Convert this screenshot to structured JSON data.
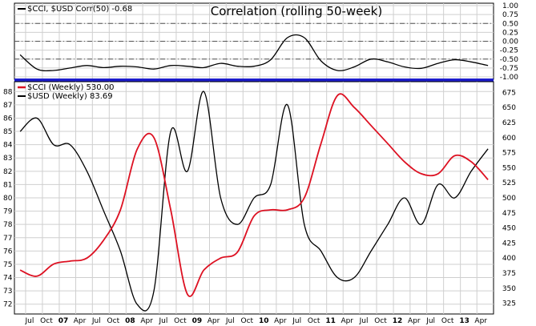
{
  "chart_data": [
    {
      "type": "line",
      "title": "Correlation (rolling 50-week)",
      "legend": [
        {
          "swatch": "#000000",
          "label": "$CCI, $USD Corr(50) -0.68"
        }
      ],
      "legend_position": "top-left",
      "grid": true,
      "y_ticks": [
        "1.00",
        "0.75",
        "0.50",
        "0.25",
        "0.00",
        "-0.25",
        "-0.50",
        "-0.75",
        "-1.00"
      ],
      "ylim": [
        -1.0,
        1.0
      ],
      "reference_lines": [
        0.5,
        0.0,
        -0.5
      ],
      "x": [
        "2006-06",
        "2006-09",
        "2006-12",
        "2007-03",
        "2007-06",
        "2007-09",
        "2007-12",
        "2008-03",
        "2008-06",
        "2008-09",
        "2008-12",
        "2009-03",
        "2009-06",
        "2009-09",
        "2009-12",
        "2010-03",
        "2010-06",
        "2010-09",
        "2010-12",
        "2011-03",
        "2011-06",
        "2011-09",
        "2011-12",
        "2012-03",
        "2012-06",
        "2012-09",
        "2012-12",
        "2013-03",
        "2013-06"
      ],
      "series": [
        {
          "name": "$CCI, $USD Corr(50)",
          "color": "#000000",
          "values": [
            -0.38,
            -0.78,
            -0.82,
            -0.75,
            -0.68,
            -0.74,
            -0.7,
            -0.72,
            -0.78,
            -0.68,
            -0.7,
            -0.74,
            -0.62,
            -0.7,
            -0.7,
            -0.52,
            0.1,
            0.1,
            -0.55,
            -0.82,
            -0.72,
            -0.5,
            -0.58,
            -0.72,
            -0.76,
            -0.62,
            -0.52,
            -0.58,
            -0.68
          ]
        }
      ]
    },
    {
      "type": "line",
      "legend": [
        {
          "swatch": "#dd1122",
          "label": "$CCI (Weekly) 530.00"
        },
        {
          "swatch": "#000000",
          "label": "$USD (Weekly) 83.69"
        }
      ],
      "legend_position": "top-left",
      "grid": true,
      "left_axis": {
        "ticks": [
          "88",
          "87",
          "86",
          "85",
          "84",
          "83",
          "82",
          "81",
          "80",
          "79",
          "78",
          "77",
          "76",
          "75",
          "74",
          "73",
          "72"
        ],
        "ylim": [
          71.5,
          88.5
        ]
      },
      "right_axis": {
        "ticks": [
          "675",
          "650",
          "625",
          "600",
          "575",
          "550",
          "525",
          "500",
          "475",
          "450",
          "425",
          "400",
          "375",
          "350",
          "325"
        ],
        "ylim": [
          312.5,
          687.5
        ]
      },
      "x_tick_labels": [
        "Jul",
        "Oct",
        "07",
        "Apr",
        "Jul",
        "Oct",
        "08",
        "Apr",
        "Jul",
        "Oct",
        "09",
        "Apr",
        "Jul",
        "Oct",
        "10",
        "Apr",
        "Jul",
        "Oct",
        "11",
        "Apr",
        "Jul",
        "Oct",
        "12",
        "Apr",
        "Jul",
        "Oct",
        "13",
        "Apr"
      ],
      "x": [
        "2006-06",
        "2006-09",
        "2006-12",
        "2007-03",
        "2007-06",
        "2007-09",
        "2007-12",
        "2008-03",
        "2008-06",
        "2008-09",
        "2008-12",
        "2009-03",
        "2009-06",
        "2009-09",
        "2009-12",
        "2010-03",
        "2010-06",
        "2010-09",
        "2010-12",
        "2011-03",
        "2011-06",
        "2011-09",
        "2011-12",
        "2012-03",
        "2012-06",
        "2012-09",
        "2012-12",
        "2013-03",
        "2013-06"
      ],
      "series": [
        {
          "name": "$CCI (Weekly)",
          "axis": "right",
          "color": "#dd1122",
          "values": [
            380,
            370,
            390,
            395,
            400,
            430,
            480,
            580,
            600,
            480,
            340,
            380,
            400,
            410,
            470,
            480,
            480,
            500,
            590,
            670,
            650,
            620,
            590,
            560,
            540,
            540,
            570,
            560,
            530
          ]
        },
        {
          "name": "$USD (Weekly)",
          "axis": "left",
          "color": "#000000",
          "values": [
            85,
            86,
            84,
            84,
            82,
            79,
            76,
            72,
            73,
            85,
            82,
            88,
            80,
            78,
            80,
            81,
            87,
            78,
            76,
            74,
            74,
            76,
            78,
            80,
            78,
            81,
            80,
            82,
            83.69
          ]
        }
      ]
    }
  ]
}
